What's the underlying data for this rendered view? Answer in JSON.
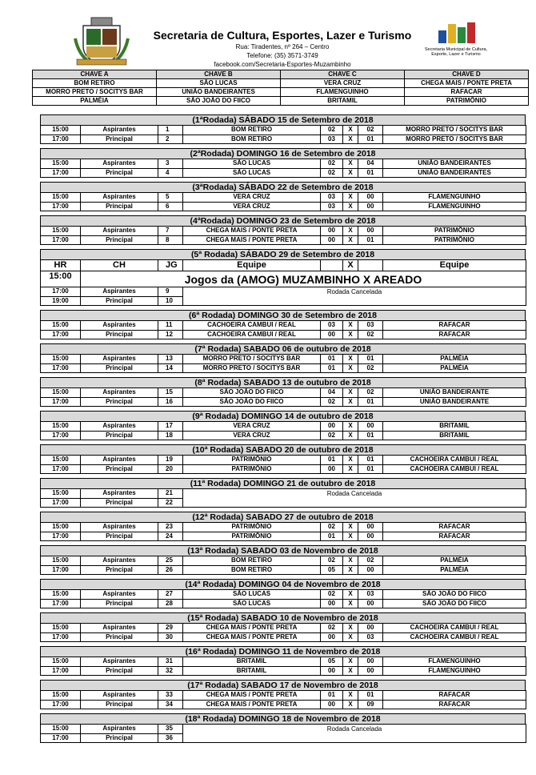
{
  "header": {
    "title": "Secretaria de Cultura, Esportes, Lazer e Turismo",
    "address": "Rua: Tiradentes, nº 264 – Centro",
    "phone": "Telefone: (35) 3571-3749",
    "facebook": "facebook.com/Secretaria-Esportes-Muzambinho",
    "logo_text": "Secretaria Municipal de Cultura, Esporte, Lazer e Turismo"
  },
  "keys": {
    "headers": [
      "CHAVE A",
      "CHAVE B",
      "CHAVE C",
      "CHAVE D"
    ],
    "rows": [
      [
        "BOM RETIRO",
        "SÃO LUCAS",
        "VERA CRUZ",
        "CHEGA MAIS / PONTE PRETA"
      ],
      [
        "MORRO PRETO / SOCITYS BAR",
        "UNIÃO BANDEIRANTES",
        "FLAMENGUINHO",
        "RAFACAR"
      ],
      [
        "PALMÉIA",
        "SÃO JOÃO DO FIICO",
        "BRITAMIL",
        "PATRIMÔNIO"
      ]
    ]
  },
  "rounds": [
    {
      "title": "(1ªRodada) SÁBADO 15 de Setembro de 2018",
      "games": [
        {
          "time": "15:00",
          "category": "Aspirantes",
          "number": "1",
          "home": "BOM RETIRO",
          "score_home": "02",
          "x": "X",
          "score_away": "02",
          "away": "MORRO PRETO / SOCITYS BAR"
        },
        {
          "time": "17:00",
          "category": "Principal",
          "number": "2",
          "home": "BOM RETIRO",
          "score_home": "03",
          "x": "X",
          "score_away": "01",
          "away": "MORRO PRETO / SOCITYS BAR"
        }
      ]
    },
    {
      "title": "(2ªRodada) DOMINGO 16 de Setembro de 2018",
      "games": [
        {
          "time": "15:00",
          "category": "Aspirantes",
          "number": "3",
          "home": "SÃO LUCAS",
          "score_home": "02",
          "x": "X",
          "score_away": "04",
          "away": "UNIÃO BANDEIRANTES"
        },
        {
          "time": "17:00",
          "category": "Principal",
          "number": "4",
          "home": "SÃO LUCAS",
          "score_home": "02",
          "x": "X",
          "score_away": "01",
          "away": "UNIÃO BANDEIRANTES"
        }
      ]
    },
    {
      "title": "(3ªRodada) SÁBADO 22 de Setembro de 2018",
      "games": [
        {
          "time": "15:00",
          "category": "Aspirantes",
          "number": "5",
          "home": "VERA CRUZ",
          "score_home": "03",
          "x": "X",
          "score_away": "00",
          "away": "FLAMENGUINHO"
        },
        {
          "time": "17:00",
          "category": "Principal",
          "number": "6",
          "home": "VERA CRUZ",
          "score_home": "03",
          "x": "X",
          "score_away": "00",
          "away": "FLAMENGUINHO"
        }
      ]
    },
    {
      "title": "(4ªRodada) DOMINGO 23 de Setembro de 2018",
      "games": [
        {
          "time": "15:00",
          "category": "Aspirantes",
          "number": "7",
          "home": "CHEGA MAIS / PONTE PRETA",
          "score_home": "00",
          "x": "X",
          "score_away": "00",
          "away": "PATRIMÔNIO"
        },
        {
          "time": "17:00",
          "category": "Principal",
          "number": "8",
          "home": "CHEGA MAIS / PONTE PRETA",
          "score_home": "00",
          "x": "X",
          "score_away": "01",
          "away": "PATRIMÔNIO"
        }
      ]
    },
    {
      "title": "(5ª Rodada) SÁBADO 29 de Setembro de 2018",
      "header": {
        "hr": "HR",
        "ch": "CH",
        "jg": "JG",
        "team_home": "Equipe",
        "x": "X",
        "team_away": "Equipe"
      },
      "banner_time": "15:00",
      "banner": "Jogos da (AMOG) MUZAMBINHO X AREADO",
      "games": [
        {
          "time": "17:00",
          "category": "Aspirantes",
          "number": "9"
        },
        {
          "time": "19:00",
          "category": "Principal",
          "number": "10"
        }
      ],
      "note": "Rodada Cancelada"
    },
    {
      "title": "(6ª Rodada) DOMINGO 30 de Setembro de 2018",
      "games": [
        {
          "time": "15:00",
          "category": "Aspirantes",
          "number": "11",
          "home": "CACHOEIRA CAMBUI / REAL",
          "score_home": "03",
          "x": "X",
          "score_away": "03",
          "away": "RAFACAR"
        },
        {
          "time": "17:00",
          "category": "Principal",
          "number": "12",
          "home": "CACHOEIRA CAMBUI / REAL",
          "score_home": "00",
          "x": "X",
          "score_away": "02",
          "away": "RAFACAR"
        }
      ]
    },
    {
      "title": "(7ª Rodada) SABADO 06 de outubro de 2018",
      "games": [
        {
          "time": "15:00",
          "category": "Aspirantes",
          "number": "13",
          "home": "MORRO PRETO / SOCITYS BAR",
          "score_home": "01",
          "x": "X",
          "score_away": "01",
          "away": "PALMÉIA"
        },
        {
          "time": "17:00",
          "category": "Principal",
          "number": "14",
          "home": "MORRO PRETO / SOCITYS BAR",
          "score_home": "01",
          "x": "X",
          "score_away": "02",
          "away": "PALMÉIA"
        }
      ]
    },
    {
      "title": "(8ª Rodada) SABADO 13 de outubro de 2018",
      "games": [
        {
          "time": "15:00",
          "category": "Aspirantes",
          "number": "15",
          "home": "SÃO JOÃO DO FIICO",
          "score_home": "04",
          "x": "X",
          "score_away": "02",
          "away": "UNIÃO BANDEIRANTE"
        },
        {
          "time": "17:00",
          "category": "Principal",
          "number": "16",
          "home": "SÃO JOÃO DO FIICO",
          "score_home": "02",
          "x": "X",
          "score_away": "01",
          "away": "UNIÃO BANDEIRANTE"
        }
      ]
    },
    {
      "title": "(9ª Rodada) DOMINGO 14 de outubro de 2018",
      "games": [
        {
          "time": "15:00",
          "category": "Aspirantes",
          "number": "17",
          "home": "VERA CRUZ",
          "score_home": "00",
          "x": "X",
          "score_away": "00",
          "away": "BRITAMIL"
        },
        {
          "time": "17:00",
          "category": "Principal",
          "number": "18",
          "home": "VERA CRUZ",
          "score_home": "02",
          "x": "X",
          "score_away": "01",
          "away": "BRITAMIL"
        }
      ]
    },
    {
      "title": "(10ª Rodada) SABADO 20 de outubro de 2018",
      "games": [
        {
          "time": "15:00",
          "category": "Aspirantes",
          "number": "19",
          "home": "PATRIMÔNIO",
          "score_home": "01",
          "x": "X",
          "score_away": "01",
          "away": "CACHOEIRA CAMBUI / REAL"
        },
        {
          "time": "17:00",
          "category": "Principal",
          "number": "20",
          "home": "PATRIMÔNIO",
          "score_home": "00",
          "x": "X",
          "score_away": "01",
          "away": "CACHOEIRA CAMBUI / REAL"
        }
      ]
    },
    {
      "title": "(11ª Rodada) DOMINGO 21 de outubro de 2018",
      "games": [
        {
          "time": "15:00",
          "category": "Aspirantes",
          "number": "21"
        },
        {
          "time": "17:00",
          "category": "Principal",
          "number": "22"
        }
      ],
      "note": "Rodada Cancelada"
    },
    {
      "title": "(12ª Rodada) SABADO 27 de outubro de 2018",
      "games": [
        {
          "time": "15:00",
          "category": "Aspirantes",
          "number": "23",
          "home": "PATRIMÔNIO",
          "score_home": "02",
          "x": "X",
          "score_away": "00",
          "away": "RAFACAR"
        },
        {
          "time": "17:00",
          "category": "Principal",
          "number": "24",
          "home": "PATRIMÔNIO",
          "score_home": "01",
          "x": "X",
          "score_away": "00",
          "away": "RAFACAR"
        }
      ]
    },
    {
      "title": "(13ª Rodada) SABADO 03 de Novembro de 2018",
      "games": [
        {
          "time": "15:00",
          "category": "Aspirantes",
          "number": "25",
          "home": "BOM RETIRO",
          "score_home": "02",
          "x": "X",
          "score_away": "02",
          "away": "PALMÉIA"
        },
        {
          "time": "17:00",
          "category": "Principal",
          "number": "26",
          "home": "BOM RETIRO",
          "score_home": "05",
          "x": "X",
          "score_away": "00",
          "away": "PALMÉIA"
        }
      ]
    },
    {
      "title": "(14ª Rodada) DOMINGO 04 de Novembro de 2018",
      "games": [
        {
          "time": "15:00",
          "category": "Aspirantes",
          "number": "27",
          "home": "SÃO LUCAS",
          "score_home": "02",
          "x": "X",
          "score_away": "03",
          "away": "SÃO JOÃO DO FIICO"
        },
        {
          "time": "17:00",
          "category": "Principal",
          "number": "28",
          "home": "SÃO LUCAS",
          "score_home": "00",
          "x": "X",
          "score_away": "00",
          "away": "SÃO JOÃO DO FIICO"
        }
      ]
    },
    {
      "title": "(15ª Rodada) SABADO 10 de Novembro de 2018",
      "games": [
        {
          "time": "15:00",
          "category": "Aspirantes",
          "number": "29",
          "home": "CHEGA MAIS / PONTE PRETA",
          "score_home": "02",
          "x": "X",
          "score_away": "00",
          "away": "CACHOEIRA CAMBUI / REAL"
        },
        {
          "time": "17:00",
          "category": "Principal",
          "number": "30",
          "home": "CHEGA MAIS / PONTE PRETA",
          "score_home": "00",
          "x": "X",
          "score_away": "03",
          "away": "CACHOEIRA CAMBUI / REAL"
        }
      ]
    },
    {
      "title": "(16ª Rodada) DOMINGO 11 de Novembro de 2018",
      "games": [
        {
          "time": "15:00",
          "category": "Aspirantes",
          "number": "31",
          "home": "BRITAMIL",
          "score_home": "05",
          "x": "X",
          "score_away": "00",
          "away": "FLAMENGUINHO"
        },
        {
          "time": "17:00",
          "category": "Principal",
          "number": "32",
          "home": "BRITAMIL",
          "score_home": "00",
          "x": "X",
          "score_away": "00",
          "away": "FLAMENGUINHO"
        }
      ]
    },
    {
      "title": "(17ª Rodada) SABADO 17 de Novembro de 2018",
      "games": [
        {
          "time": "15:00",
          "category": "Aspirantes",
          "number": "33",
          "home": "CHEGA MAIS / PONTE PRETA",
          "score_home": "01",
          "x": "X",
          "score_away": "01",
          "away": "RAFACAR"
        },
        {
          "time": "17:00",
          "category": "Principal",
          "number": "34",
          "home": "CHEGA MAIS / PONTE PRETA",
          "score_home": "00",
          "x": "X",
          "score_away": "09",
          "away": "RAFACAR"
        }
      ]
    },
    {
      "title": "(18ª Rodada) DOMINGO 18 de Novembro de 2018",
      "games": [
        {
          "time": "15:00",
          "category": "Aspirantes",
          "number": "35"
        },
        {
          "time": "17:00",
          "category": "Principal",
          "number": "36"
        }
      ],
      "note": "Rodada Cancelada"
    }
  ]
}
